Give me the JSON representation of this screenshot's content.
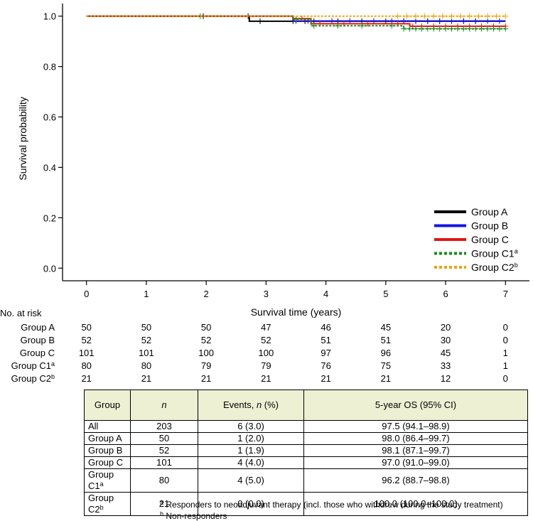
{
  "chart_data": {
    "type": "line",
    "subtype": "kaplan-meier",
    "xlabel": "Survival time (years)",
    "ylabel": "Survival probability",
    "xlim": [
      -0.4,
      7.4
    ],
    "ylim": [
      -0.05,
      1.05
    ],
    "xticks": [
      0,
      1,
      2,
      3,
      4,
      5,
      6,
      7
    ],
    "yticks": [
      0.0,
      0.2,
      0.4,
      0.6,
      0.8,
      1.0
    ],
    "ytick_labels": [
      "0.0",
      "0.2",
      "0.4",
      "0.6",
      "0.8",
      "1.0"
    ],
    "legend_position": "bottom-right",
    "series": [
      {
        "name": "Group A",
        "base": "Group A",
        "sup": "",
        "color": "#000000",
        "dash": "solid",
        "x": [
          0,
          2.72,
          3.72,
          7.0
        ],
        "y": [
          1.0,
          0.98,
          0.98,
          0.98
        ],
        "censor_x": [
          1.95,
          2.7,
          2.9,
          3.45,
          3.65,
          3.8,
          4.2,
          4.6,
          5.0,
          5.3,
          5.5,
          5.7,
          5.9,
          6.1,
          6.3,
          6.5
        ]
      },
      {
        "name": "Group B",
        "base": "Group B",
        "sup": "",
        "color": "#1414e6",
        "dash": "solid",
        "x": [
          0,
          3.45,
          7.0
        ],
        "y": [
          1.0,
          0.981,
          0.981
        ],
        "censor_x": [
          3.5,
          3.7,
          4.1,
          4.4,
          4.8,
          5.1,
          5.3,
          5.5,
          5.7,
          5.9,
          6.1,
          6.3,
          6.5,
          6.7,
          6.9
        ]
      },
      {
        "name": "Group C",
        "base": "Group C",
        "sup": "",
        "color": "#e61414",
        "dash": "solid",
        "x": [
          0,
          3.45,
          3.75,
          5.0,
          5.4,
          7.0
        ],
        "y": [
          1.0,
          0.99,
          0.97,
          0.97,
          0.96,
          0.96
        ],
        "censor_x": [
          3.6,
          3.9,
          4.3,
          4.7,
          5.2,
          5.45,
          5.6,
          5.8,
          6.0,
          6.2,
          6.4,
          6.6,
          6.8,
          7.0
        ]
      },
      {
        "name": "Group C1a",
        "base": "Group C1",
        "sup": "a",
        "color": "#1a8a1a",
        "dash": "dotted",
        "x": [
          0,
          3.45,
          3.75,
          5.0,
          5.3,
          7.0
        ],
        "y": [
          1.0,
          0.988,
          0.962,
          0.962,
          0.95,
          0.95
        ],
        "censor_x": [
          1.9,
          3.5,
          3.8,
          4.2,
          4.6,
          5.1,
          5.3,
          5.4,
          5.5,
          5.6,
          5.7,
          5.8,
          5.9,
          6.0,
          6.1,
          6.2,
          6.3,
          6.4,
          6.5,
          6.6,
          6.7,
          6.8,
          6.9,
          7.0
        ]
      },
      {
        "name": "Group C2b",
        "base": "Group C2",
        "sup": "b",
        "color": "#f5a000",
        "dash": "dotted",
        "x": [
          0,
          7.0
        ],
        "y": [
          1.0,
          1.0
        ],
        "censor_x": [
          5.2,
          5.35,
          5.5,
          5.65,
          5.8,
          5.95,
          6.1,
          6.25,
          6.4,
          6.55,
          6.7,
          6.85,
          7.0
        ]
      }
    ]
  },
  "risk_table": {
    "title": "No. at risk",
    "rows": [
      {
        "label": "Group A",
        "sup": "",
        "values": [
          "50",
          "50",
          "50",
          "47",
          "46",
          "45",
          "20",
          "0"
        ]
      },
      {
        "label": "Group B",
        "sup": "",
        "values": [
          "52",
          "52",
          "52",
          "52",
          "51",
          "51",
          "30",
          "0"
        ]
      },
      {
        "label": "Group C",
        "sup": "",
        "values": [
          "101",
          "101",
          "100",
          "100",
          "97",
          "96",
          "45",
          "1"
        ]
      },
      {
        "label": "Group C1",
        "sup": "a",
        "values": [
          "80",
          "80",
          "79",
          "79",
          "76",
          "75",
          "33",
          "1"
        ]
      },
      {
        "label": "Group C2",
        "sup": "b",
        "values": [
          "21",
          "21",
          "21",
          "21",
          "21",
          "21",
          "12",
          "0"
        ]
      }
    ]
  },
  "os_table": {
    "headers": {
      "group": "Group",
      "n": "n",
      "events_base": "Events, ",
      "events_n": "n",
      "events_pct": " (%)",
      "os": "5-year OS (95% CI)"
    },
    "rows": [
      {
        "group": "All",
        "sup": "",
        "n": "203",
        "events": "6 (3.0)",
        "os": "97.5 (94.1–98.9)"
      },
      {
        "group": "Group A",
        "sup": "",
        "n": "50",
        "events": "1 (2.0)",
        "os": "98.0 (86.4–99.7)"
      },
      {
        "group": "Group B",
        "sup": "",
        "n": "52",
        "events": "1 (1.9)",
        "os": "98.1 (87.1–99.7)"
      },
      {
        "group": "Group C",
        "sup": "",
        "n": "101",
        "events": "4 (4.0)",
        "os": "97.0 (91.0–99.0)"
      },
      {
        "group": "Group C1",
        "sup": "a",
        "n": "80",
        "events": "4 (5.0)",
        "os": "96.2 (88.7–98.8)"
      },
      {
        "group": "Group C2",
        "sup": "b",
        "n": "21",
        "events": "0 (0.0)",
        "os": "100.0 (100.0–100.0)"
      }
    ]
  },
  "footnotes": [
    {
      "mark": "a",
      "text": " Responders to neoadjuvant therapy (incl. those who withdrew during the study treatment)"
    },
    {
      "mark": "b",
      "text": " Non-responders"
    }
  ]
}
